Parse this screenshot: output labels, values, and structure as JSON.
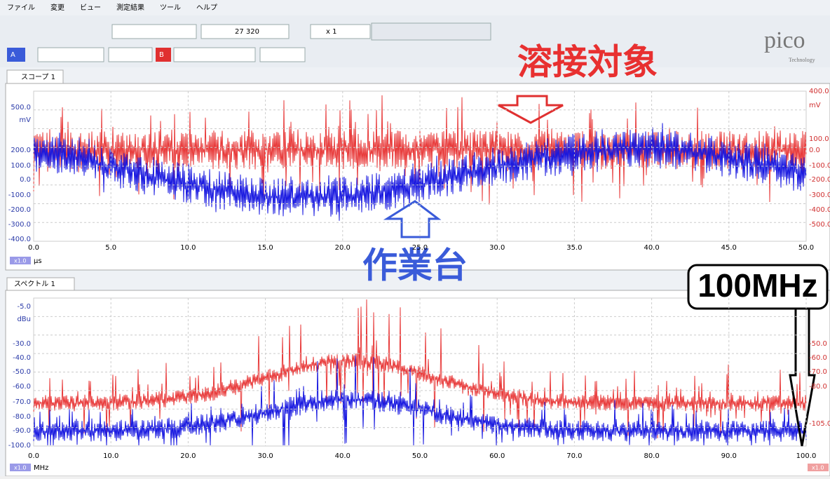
{
  "menu": [
    "ファイル",
    "変更",
    "ビュー",
    "測定結果",
    "ツール",
    "ヘルプ"
  ],
  "toolbar": {
    "sample_count": "27 320",
    "zoom": "x 1",
    "channel_a": "A",
    "channel_b": "B"
  },
  "logo": {
    "name": "pico",
    "tagline": "Technology"
  },
  "scope": {
    "tab": "スコープ 1",
    "left_ticks": [
      "500.0",
      "mV",
      "200.0",
      "100.0",
      "0.0",
      "-100.0",
      "-200.0",
      "-300.0",
      "-400.0"
    ],
    "right_ticks": [
      "400.0",
      "mV",
      "100.0",
      "0.0",
      "-100.0",
      "-200.0",
      "-300.0",
      "-400.0",
      "-500.0"
    ],
    "x_ticks": [
      "0.0",
      "5.0",
      "10.0",
      "15.0",
      "20.0",
      "25.0",
      "30.0",
      "35.0",
      "40.0",
      "45.0",
      "50.0"
    ],
    "x_scale": "x1.0",
    "x_unit": "μs"
  },
  "spectrum": {
    "tab": "スペクトル 1",
    "left_ticks": [
      "-5.0",
      "dBu",
      "-30.0",
      "-40.0",
      "-50.0",
      "-60.0",
      "-70.0",
      "-80.0",
      "-90.0",
      "-100.0"
    ],
    "right_ticks": [
      "-50.0",
      "-60.0",
      "-70.0",
      "-80.0",
      "-105.0"
    ],
    "x_ticks": [
      "0.0",
      "10.0",
      "20.0",
      "30.0",
      "40.0",
      "50.0",
      "60.0",
      "70.0",
      "80.0",
      "90.0",
      "100.0"
    ],
    "x_scale": "x1.0",
    "x_unit": "MHz",
    "right_scale": "x1.0"
  },
  "annotations": {
    "target": "溶接対象",
    "bench": "作業台",
    "frequency": "100MHz"
  }
}
